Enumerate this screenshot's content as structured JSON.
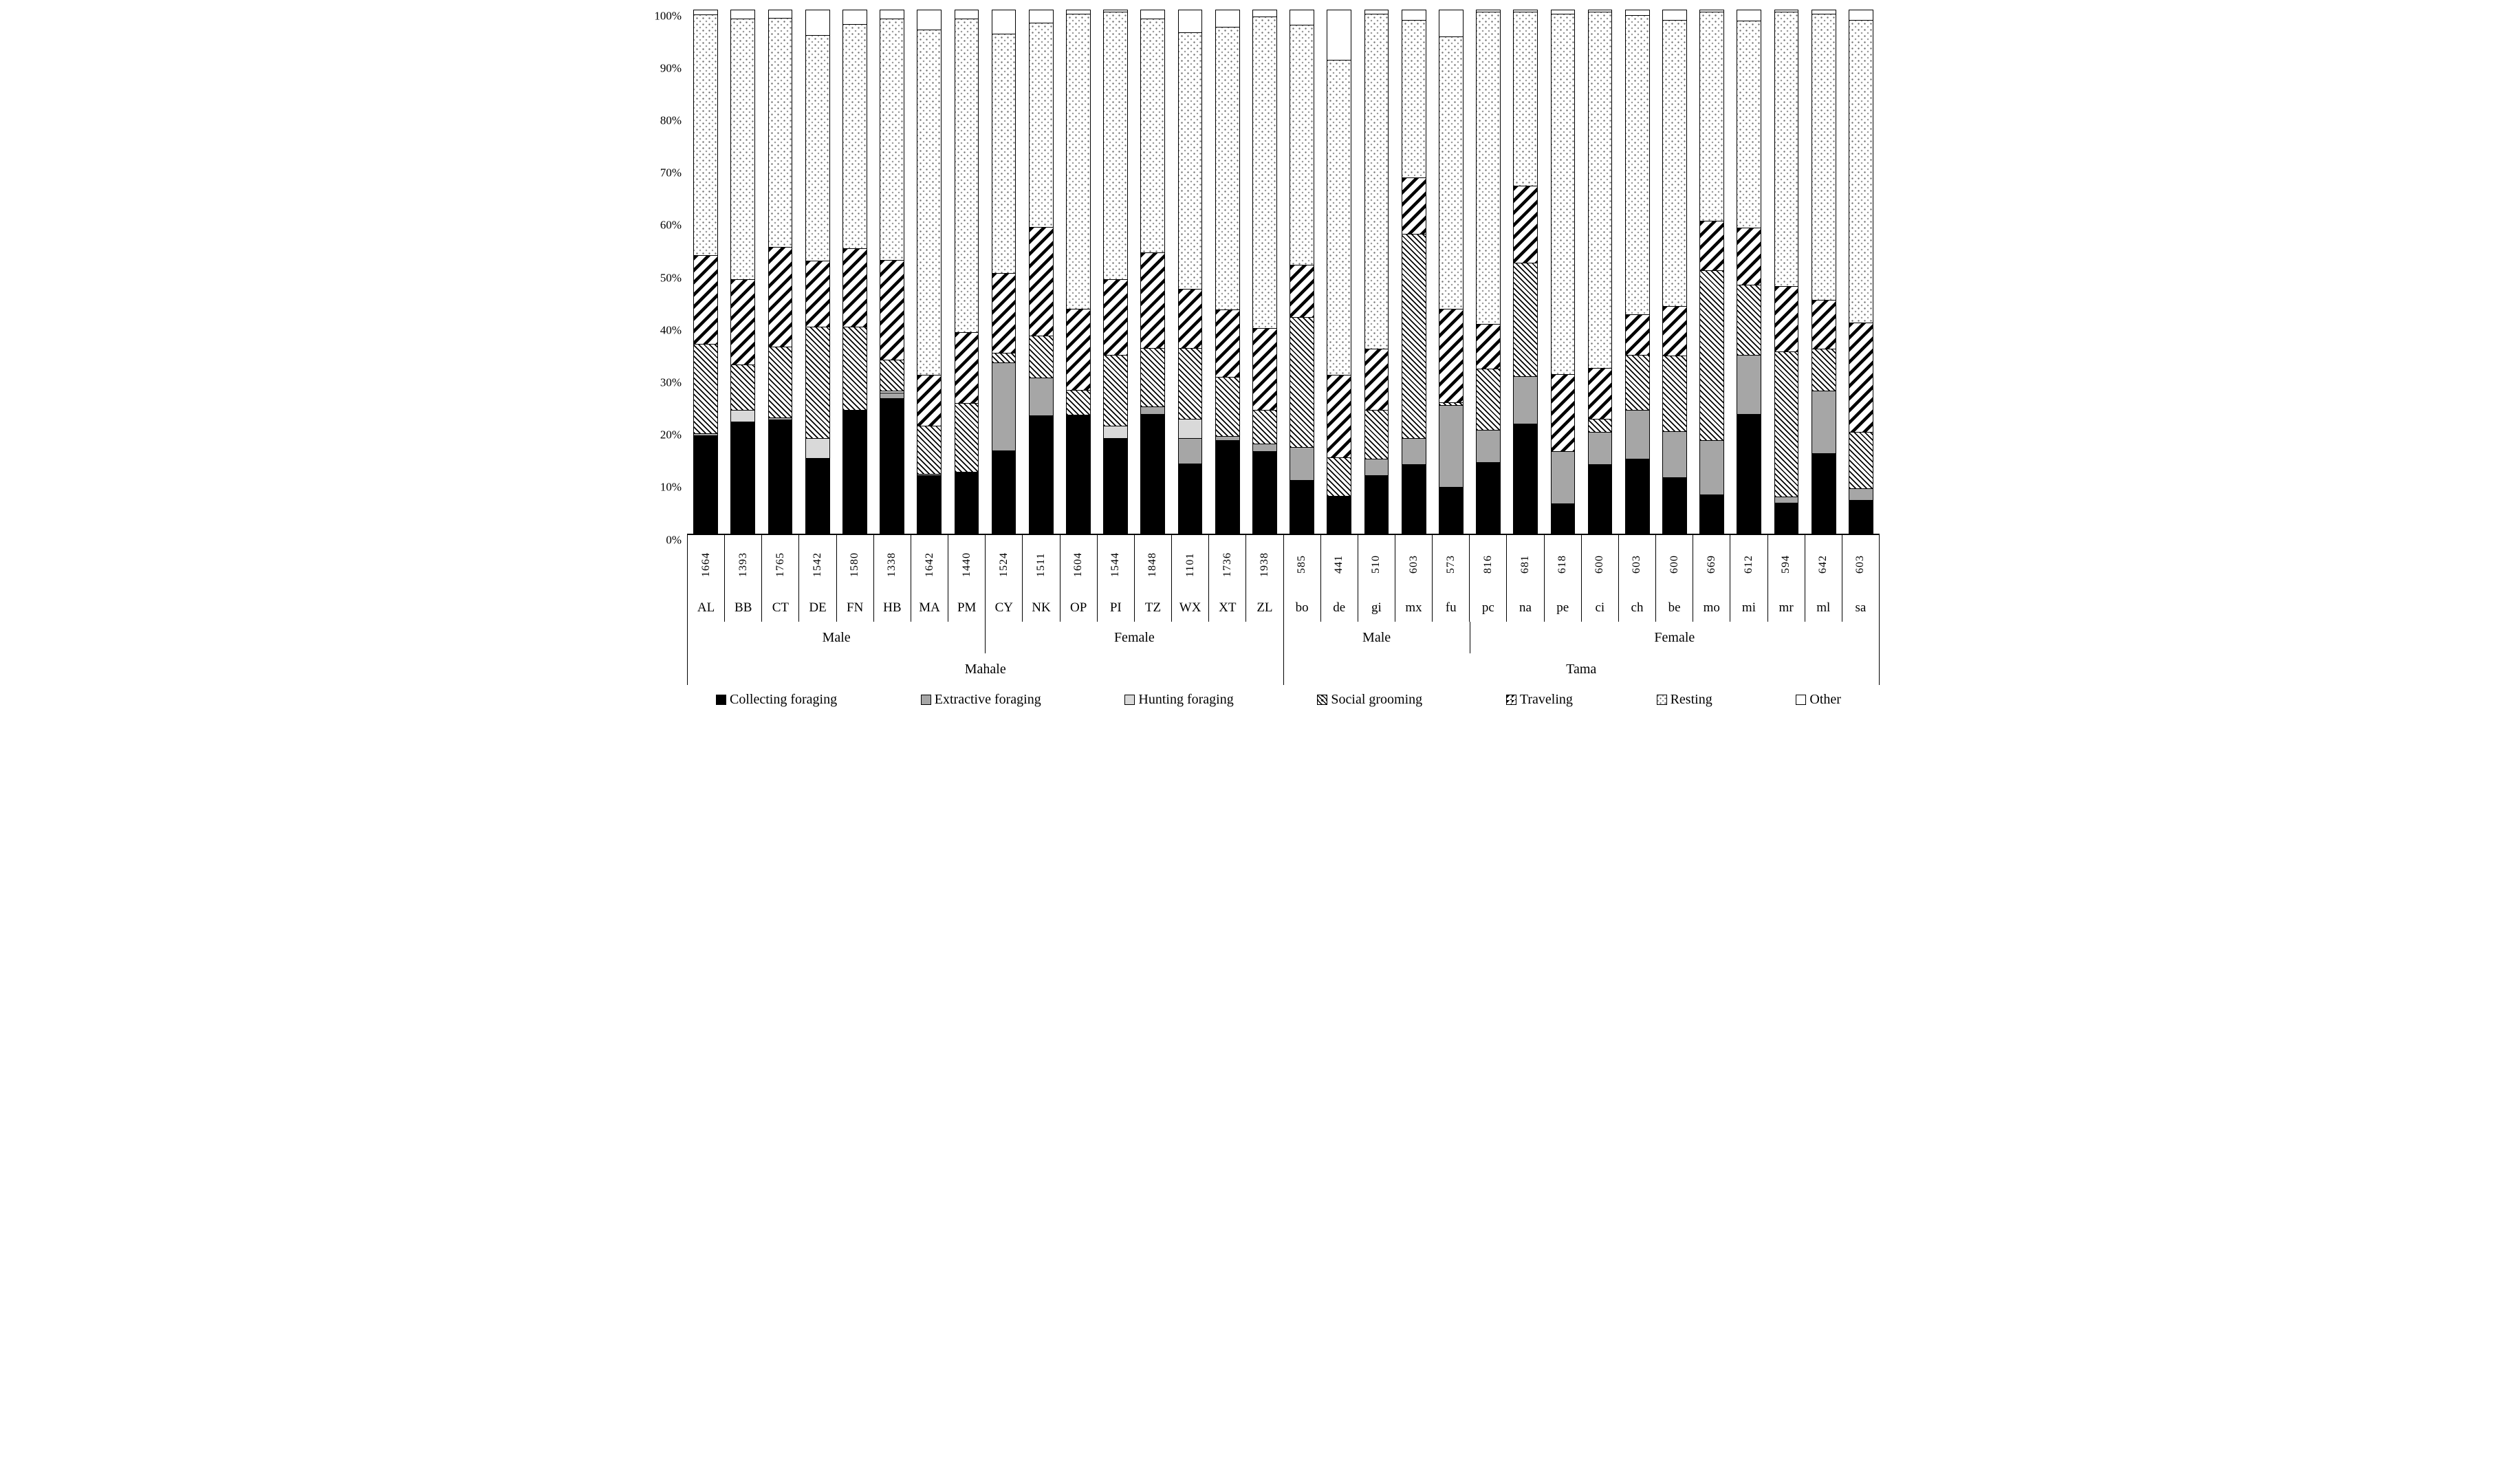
{
  "chart_data": {
    "type": "bar",
    "subtype": "stacked-100-percent",
    "title": "",
    "xlabel": "",
    "ylabel": "",
    "ylim": [
      0,
      100
    ],
    "grid": false,
    "legend_position": "bottom",
    "y_ticks": [
      "0%",
      "10%",
      "20%",
      "30%",
      "40%",
      "50%",
      "60%",
      "70%",
      "80%",
      "90%",
      "100%"
    ],
    "series_keys": [
      "collecting",
      "extractive",
      "hunting",
      "grooming",
      "traveling",
      "resting",
      "other"
    ],
    "series_labels": [
      "Collecting foraging",
      "Extractive foraging",
      "Hunting foraging",
      "Social grooming",
      "Traveling",
      "Resting",
      "Other"
    ],
    "colors": {
      "collecting": "#000000",
      "extractive": "#a6a6a6",
      "hunting": "#d9d9d9",
      "grooming": "hatch-fine-diagonal",
      "traveling": "stripe-bold-diagonal",
      "resting": "dotted",
      "other": "#ffffff"
    },
    "groups": [
      {
        "site": "Mahale",
        "sex": "Male",
        "bars": [
          {
            "id": "AL",
            "n": "1664",
            "values": [
              18.7,
              0.4,
              0,
              17.1,
              16.9,
              46.1,
              0.8
            ]
          },
          {
            "id": "BB",
            "n": "1393",
            "values": [
              21.3,
              0,
              2.3,
              8.6,
              16.4,
              49.8,
              1.6
            ]
          },
          {
            "id": "CT",
            "n": "1765",
            "values": [
              21.7,
              0.4,
              0,
              13.6,
              19.1,
              43.8,
              1.4
            ]
          },
          {
            "id": "DE",
            "n": "1542",
            "values": [
              14.3,
              0,
              3.8,
              21.4,
              12.6,
              43.2,
              4.7
            ]
          },
          {
            "id": "FN",
            "n": "1580",
            "values": [
              23.6,
              0,
              0,
              15.9,
              15.0,
              42.9,
              2.6
            ]
          },
          {
            "id": "HB",
            "n": "1338",
            "values": [
              25.8,
              1.0,
              0.5,
              5.8,
              19.2,
              46.1,
              1.6
            ]
          },
          {
            "id": "MA",
            "n": "1642",
            "values": [
              11.0,
              0.3,
              0,
              9.2,
              9.7,
              66.1,
              3.7
            ]
          },
          {
            "id": "PM",
            "n": "1440",
            "values": [
              11.7,
              0,
              0,
              13.2,
              13.5,
              60.0,
              1.6
            ]
          }
        ]
      },
      {
        "site": "Mahale",
        "sex": "Female",
        "bars": [
          {
            "id": "CY",
            "n": "1524",
            "values": [
              15.8,
              16.8,
              0,
              1.9,
              15.2,
              45.8,
              4.5
            ]
          },
          {
            "id": "NK",
            "n": "1511",
            "values": [
              22.5,
              7.2,
              0,
              8.0,
              20.8,
              39.1,
              2.4
            ]
          },
          {
            "id": "OP",
            "n": "1604",
            "values": [
              22.6,
              0,
              0,
              4.8,
              15.5,
              56.5,
              0.6
            ]
          },
          {
            "id": "PI",
            "n": "1544",
            "values": [
              18.1,
              0,
              2.4,
              13.6,
              14.5,
              51.1,
              0.3
            ]
          },
          {
            "id": "TZ",
            "n": "1848",
            "values": [
              22.7,
              1.5,
              0,
              11.2,
              18.3,
              44.7,
              1.6
            ]
          },
          {
            "id": "WX",
            "n": "1101",
            "values": [
              13.3,
              4.8,
              3.8,
              13.5,
              11.3,
              49.1,
              4.2
            ]
          },
          {
            "id": "XT",
            "n": "1736",
            "values": [
              17.7,
              0.8,
              0,
              11.4,
              12.8,
              54.1,
              3.2
            ]
          },
          {
            "id": "ZL",
            "n": "1938",
            "values": [
              15.6,
              1.5,
              0,
              6.5,
              15.6,
              59.6,
              1.2
            ]
          }
        ]
      },
      {
        "site": "Tama",
        "sex": "Male",
        "bars": [
          {
            "id": "bo",
            "n": "585",
            "values": [
              10.1,
              6.4,
              0,
              24.8,
              10.0,
              45.9,
              2.8
            ]
          },
          {
            "id": "de",
            "n": "441",
            "values": [
              7.1,
              0,
              0,
              7.4,
              15.8,
              60.2,
              9.5
            ]
          },
          {
            "id": "gi",
            "n": "510",
            "values": [
              11.1,
              3.1,
              0,
              9.3,
              11.7,
              64.1,
              0.7
            ]
          },
          {
            "id": "mx",
            "n": "603",
            "values": [
              13.2,
              5.0,
              0,
              39.0,
              10.8,
              30.2,
              1.8
            ]
          },
          {
            "id": "fu",
            "n": "573",
            "values": [
              8.8,
              15.7,
              0,
              0.5,
              17.9,
              52.1,
              5.0
            ]
          }
        ]
      },
      {
        "site": "Tama",
        "sex": "Female",
        "bars": [
          {
            "id": "pc",
            "n": "816",
            "values": [
              13.6,
              6.1,
              0,
              11.7,
              8.6,
              59.8,
              0.2
            ]
          },
          {
            "id": "na",
            "n": "681",
            "values": [
              20.9,
              9.1,
              0,
              21.7,
              14.8,
              33.2,
              0.3
            ]
          },
          {
            "id": "pe",
            "n": "618",
            "values": [
              5.7,
              10.0,
              0,
              0,
              14.7,
              69.0,
              0.6
            ]
          },
          {
            "id": "ci",
            "n": "600",
            "values": [
              13.2,
              6.1,
              0,
              2.5,
              9.8,
              68.1,
              0.3
            ]
          },
          {
            "id": "ch",
            "n": "603",
            "values": [
              14.2,
              9.4,
              0,
              10.5,
              7.8,
              57.2,
              0.9
            ]
          },
          {
            "id": "be",
            "n": "600",
            "values": [
              10.7,
              8.8,
              0,
              14.4,
              9.5,
              54.7,
              1.9
            ]
          },
          {
            "id": "mo",
            "n": "669",
            "values": [
              7.4,
              10.4,
              0,
              32.5,
              9.4,
              40.1,
              0.2
            ]
          },
          {
            "id": "mi",
            "n": "612",
            "values": [
              22.8,
              11.3,
              0,
              13.4,
              10.9,
              39.6,
              2.0
            ]
          },
          {
            "id": "mr",
            "n": "594",
            "values": [
              5.8,
              1.2,
              0,
              27.8,
              12.5,
              52.4,
              0.3
            ]
          },
          {
            "id": "ml",
            "n": "642",
            "values": [
              15.3,
              11.9,
              0,
              8.0,
              9.4,
              54.7,
              0.7
            ]
          },
          {
            "id": "sa",
            "n": "603",
            "values": [
              6.3,
              2.3,
              0,
              10.7,
              20.9,
              57.9,
              1.9
            ]
          }
        ]
      }
    ]
  }
}
